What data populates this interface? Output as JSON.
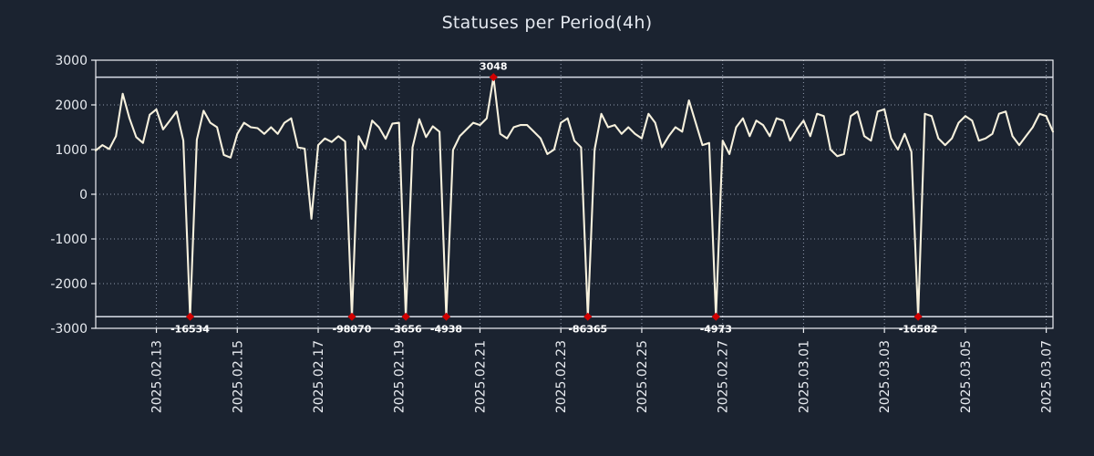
{
  "chart_data": {
    "type": "line",
    "title": "Statuses per Period(4h)",
    "xlabel": "",
    "ylabel": "",
    "period": "4h",
    "x_start": "2025-02-11 12:00",
    "x_step_hours": 4,
    "ylim": [
      -3000,
      3000
    ],
    "grid": true,
    "legend": "none",
    "clip_high": 2620,
    "clip_low": -2740,
    "y_ticks": [
      3000,
      2000,
      1000,
      0,
      -1000,
      -2000,
      -3000
    ],
    "x_ticks": [
      {
        "label": "2025.02.13",
        "index": 9
      },
      {
        "label": "2025.02.15",
        "index": 21
      },
      {
        "label": "2025.02.17",
        "index": 33
      },
      {
        "label": "2025.02.19",
        "index": 45
      },
      {
        "label": "2025.02.21",
        "index": 57
      },
      {
        "label": "2025.02.23",
        "index": 69
      },
      {
        "label": "2025.02.25",
        "index": 81
      },
      {
        "label": "2025.02.27",
        "index": 93
      },
      {
        "label": "2025.03.01",
        "index": 105
      },
      {
        "label": "2025.03.03",
        "index": 117
      },
      {
        "label": "2025.03.05",
        "index": 129
      },
      {
        "label": "2025.03.07",
        "index": 141
      }
    ],
    "x_tick_rotation_deg": 90,
    "values": [
      980,
      1100,
      1010,
      1300,
      2250,
      1700,
      1280,
      1150,
      1780,
      1900,
      1450,
      1650,
      1850,
      1200,
      -16534,
      1220,
      1870,
      1600,
      1500,
      880,
      820,
      1350,
      1600,
      1500,
      1480,
      1350,
      1500,
      1350,
      1600,
      1700,
      1050,
      1020,
      -550,
      1100,
      1250,
      1170,
      1300,
      1180,
      -98070,
      1300,
      1020,
      1650,
      1500,
      1240,
      1580,
      1600,
      -3656,
      1050,
      1680,
      1280,
      1520,
      1400,
      -4938,
      990,
      1300,
      1450,
      1600,
      1550,
      1700,
      3048,
      1350,
      1250,
      1500,
      1550,
      1550,
      1400,
      1250,
      900,
      1000,
      1600,
      1700,
      1200,
      1050,
      -86365,
      1000,
      1800,
      1500,
      1550,
      1350,
      1500,
      1350,
      1250,
      1800,
      1600,
      1050,
      1300,
      1500,
      1400,
      2100,
      1600,
      1100,
      1150,
      -4973,
      1200,
      900,
      1500,
      1700,
      1300,
      1650,
      1550,
      1300,
      1700,
      1650,
      1200,
      1450,
      1650,
      1300,
      1800,
      1750,
      1000,
      850,
      900,
      1750,
      1850,
      1300,
      1200,
      1850,
      1900,
      1250,
      1000,
      1350,
      950,
      -16582,
      1800,
      1750,
      1250,
      1100,
      1250,
      1600,
      1750,
      1650,
      1200,
      1250,
      1350,
      1800,
      1850,
      1300,
      1100,
      1300,
      1500,
      1800,
      1750,
      1400
    ],
    "annotations": [
      {
        "index": 14,
        "value": -16534,
        "label": "-16534"
      },
      {
        "index": 38,
        "value": -98070,
        "label": "-98070"
      },
      {
        "index": 46,
        "value": -3656,
        "label": "-3656"
      },
      {
        "index": 52,
        "value": -4938,
        "label": "-4938"
      },
      {
        "index": 59,
        "value": 3048,
        "label": "3048"
      },
      {
        "index": 73,
        "value": -86365,
        "label": "-86365"
      },
      {
        "index": 92,
        "value": -4973,
        "label": "-4973"
      },
      {
        "index": 122,
        "value": -16582,
        "label": "-16582"
      }
    ],
    "colors": {
      "background": "#1b2330",
      "line": "#f7f1dd",
      "marker": "#d20000",
      "annotation": "#ffffff",
      "grid": "#8f98ab",
      "axis": "#eef1f5",
      "clip_line": "#d9dee8",
      "text": "#e8ebf0"
    }
  }
}
